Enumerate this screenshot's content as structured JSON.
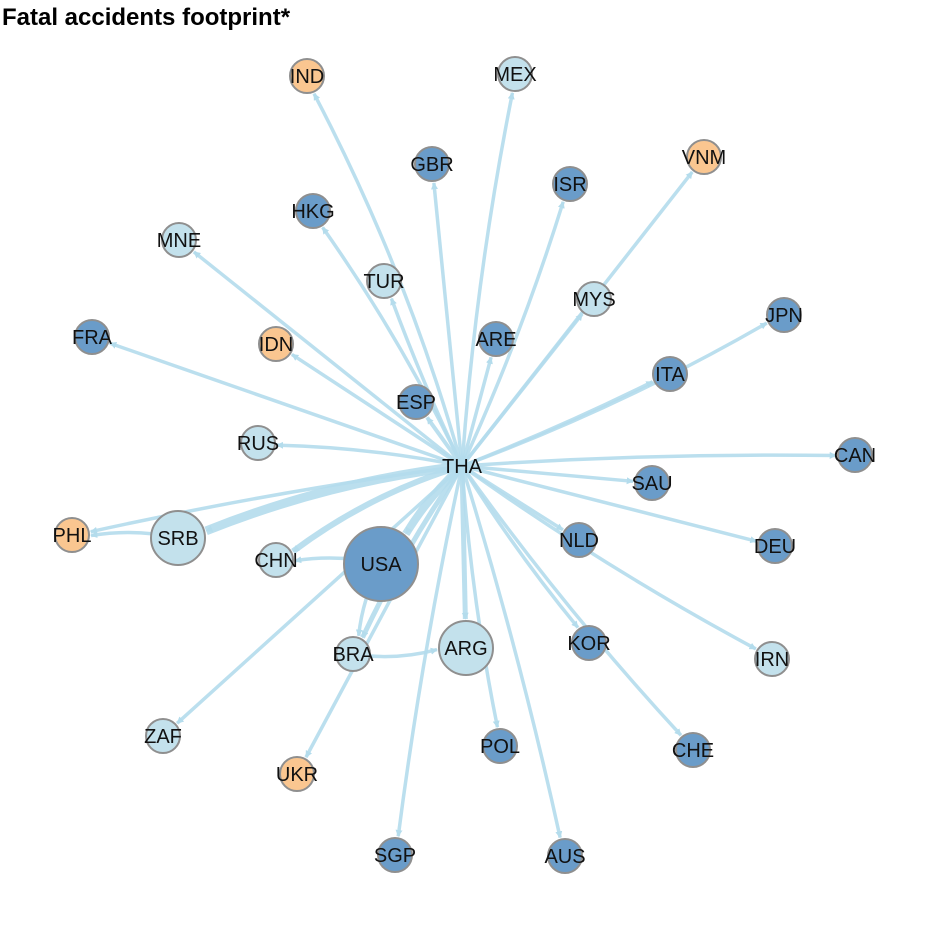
{
  "title": "Fatal accidents footprint*",
  "colors": {
    "edge": "#b4dcec",
    "hub_label": "#111111",
    "node_stroke": "#8f8f8f",
    "category": {
      "dark": "#6a9cc9",
      "light": "#c3e1ec",
      "orange": "#fac690",
      "hub": "#ffffff"
    }
  },
  "graph": {
    "hub": "THA",
    "nodes": [
      {
        "id": "THA",
        "cat": "hub"
      },
      {
        "id": "IND",
        "cat": "orange"
      },
      {
        "id": "MEX",
        "cat": "light"
      },
      {
        "id": "GBR",
        "cat": "dark"
      },
      {
        "id": "VNM",
        "cat": "orange"
      },
      {
        "id": "ISR",
        "cat": "dark"
      },
      {
        "id": "HKG",
        "cat": "dark"
      },
      {
        "id": "MNE",
        "cat": "light"
      },
      {
        "id": "TUR",
        "cat": "light"
      },
      {
        "id": "MYS",
        "cat": "light"
      },
      {
        "id": "FRA",
        "cat": "dark"
      },
      {
        "id": "IDN",
        "cat": "orange"
      },
      {
        "id": "ARE",
        "cat": "dark"
      },
      {
        "id": "JPN",
        "cat": "dark"
      },
      {
        "id": "ITA",
        "cat": "dark"
      },
      {
        "id": "ESP",
        "cat": "dark"
      },
      {
        "id": "RUS",
        "cat": "light"
      },
      {
        "id": "CAN",
        "cat": "dark"
      },
      {
        "id": "SAU",
        "cat": "dark"
      },
      {
        "id": "PHL",
        "cat": "orange"
      },
      {
        "id": "SRB",
        "cat": "light"
      },
      {
        "id": "DEU",
        "cat": "dark"
      },
      {
        "id": "NLD",
        "cat": "dark"
      },
      {
        "id": "CHN",
        "cat": "light"
      },
      {
        "id": "USA",
        "cat": "dark"
      },
      {
        "id": "KOR",
        "cat": "dark"
      },
      {
        "id": "IRN",
        "cat": "light"
      },
      {
        "id": "BRA",
        "cat": "light"
      },
      {
        "id": "ARG",
        "cat": "light"
      },
      {
        "id": "ZAF",
        "cat": "light"
      },
      {
        "id": "POL",
        "cat": "dark"
      },
      {
        "id": "CHE",
        "cat": "dark"
      },
      {
        "id": "UKR",
        "cat": "orange"
      },
      {
        "id": "SGP",
        "cat": "dark"
      },
      {
        "id": "AUS",
        "cat": "dark"
      }
    ],
    "edges": [
      {
        "from": "THA",
        "to": "IND"
      },
      {
        "from": "THA",
        "to": "MEX"
      },
      {
        "from": "THA",
        "to": "GBR"
      },
      {
        "from": "THA",
        "to": "VNM"
      },
      {
        "from": "THA",
        "to": "ISR"
      },
      {
        "from": "THA",
        "to": "HKG"
      },
      {
        "from": "THA",
        "to": "MNE"
      },
      {
        "from": "THA",
        "to": "TUR"
      },
      {
        "from": "THA",
        "to": "MYS"
      },
      {
        "from": "THA",
        "to": "FRA"
      },
      {
        "from": "THA",
        "to": "IDN"
      },
      {
        "from": "THA",
        "to": "ARE"
      },
      {
        "from": "THA",
        "to": "JPN"
      },
      {
        "from": "THA",
        "to": "ITA"
      },
      {
        "from": "THA",
        "to": "ESP"
      },
      {
        "from": "THA",
        "to": "RUS"
      },
      {
        "from": "THA",
        "to": "CAN"
      },
      {
        "from": "THA",
        "to": "SAU"
      },
      {
        "from": "THA",
        "to": "PHL"
      },
      {
        "from": "THA",
        "to": "SRB"
      },
      {
        "from": "THA",
        "to": "DEU"
      },
      {
        "from": "THA",
        "to": "NLD"
      },
      {
        "from": "THA",
        "to": "CHN"
      },
      {
        "from": "THA",
        "to": "USA"
      },
      {
        "from": "THA",
        "to": "KOR"
      },
      {
        "from": "THA",
        "to": "IRN"
      },
      {
        "from": "THA",
        "to": "BRA"
      },
      {
        "from": "THA",
        "to": "ARG"
      },
      {
        "from": "THA",
        "to": "ZAF"
      },
      {
        "from": "THA",
        "to": "POL"
      },
      {
        "from": "THA",
        "to": "CHE"
      },
      {
        "from": "THA",
        "to": "UKR"
      },
      {
        "from": "THA",
        "to": "SGP"
      },
      {
        "from": "THA",
        "to": "AUS"
      },
      {
        "from": "SRB",
        "to": "PHL"
      },
      {
        "from": "USA",
        "to": "BRA"
      },
      {
        "from": "BRA",
        "to": "ARG"
      },
      {
        "from": "USA",
        "to": "CHN"
      }
    ]
  }
}
